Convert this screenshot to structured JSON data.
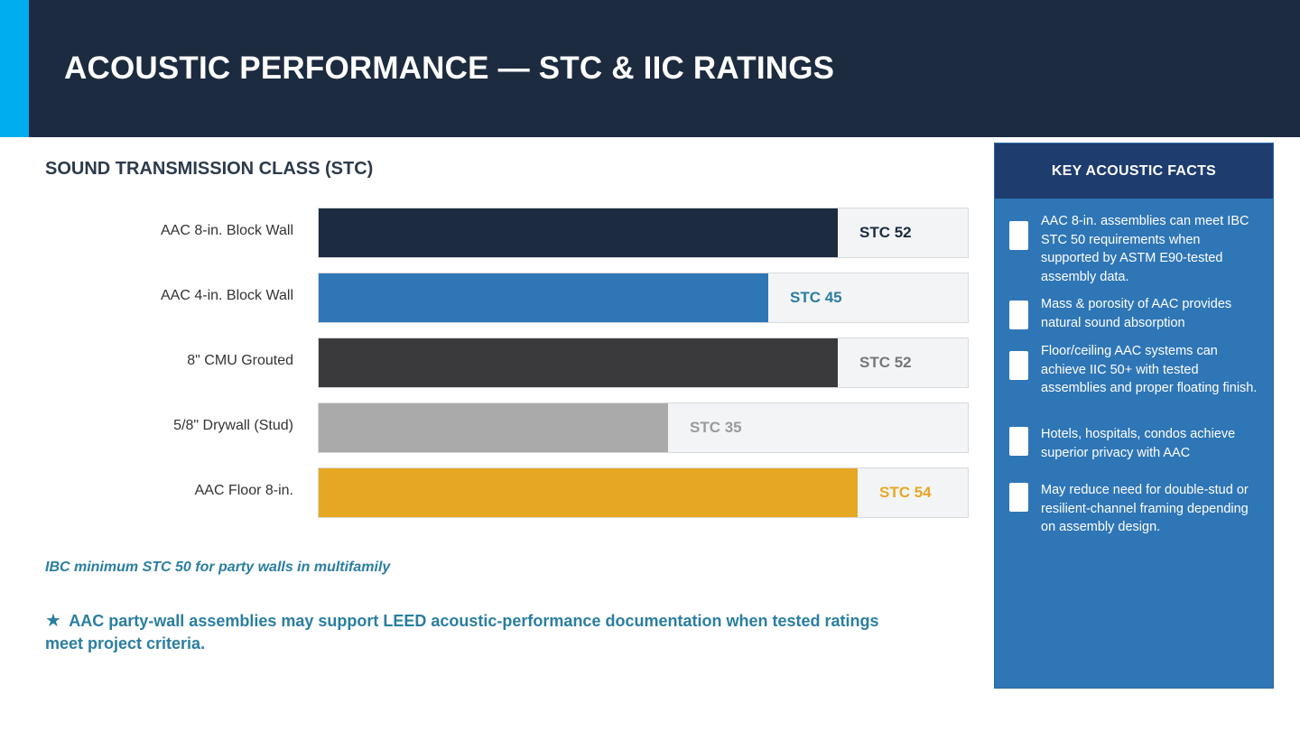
{
  "header": {
    "title": "ACOUSTIC PERFORMANCE — STC & IIC RATINGS"
  },
  "section": {
    "title": "SOUND TRANSMISSION CLASS (STC)"
  },
  "chart_data": {
    "type": "bar",
    "orientation": "horizontal",
    "title": "SOUND TRANSMISSION CLASS (STC)",
    "xlim": [
      0,
      65
    ],
    "grid": false,
    "categories": [
      "AAC 8-in. Block Wall",
      "AAC 4-in. Block Wall",
      "8\" CMU Grouted",
      "5/8\" Drywall (Stud)",
      "AAC Floor 8-in."
    ],
    "values": [
      52,
      45,
      52,
      35,
      54
    ],
    "data_labels": [
      "STC 52",
      "STC 45",
      "STC 52",
      "STC 35",
      "STC 54"
    ],
    "bar_colors": [
      "#1c2b3f",
      "#2f76b6",
      "#3a3a3c",
      "#aaaaaa",
      "#e6a823"
    ],
    "label_colors": [
      "#1c2b3f",
      "#2a7ea0",
      "#777777",
      "#9a9a9a",
      "#e6a823"
    ]
  },
  "notes": {
    "ibc": "IBC minimum STC 50 for party walls in multifamily",
    "leed_star": "★",
    "leed": "AAC party-wall assemblies may support LEED acoustic-performance documentation when tested ratings meet project criteria."
  },
  "panel": {
    "title": "KEY ACOUSTIC FACTS",
    "facts": [
      "AAC 8-in. assemblies can meet IBC STC 50 requirements when supported by ASTM E90-tested assembly data.",
      "Mass & porosity of AAC provides natural sound absorption",
      "Floor/ceiling AAC systems can achieve IIC 50+ with tested assemblies and proper floating finish.",
      "Hotels, hospitals, condos achieve superior privacy with AAC",
      "May reduce need for double-stud or resilient-channel framing depending on assembly design."
    ]
  }
}
